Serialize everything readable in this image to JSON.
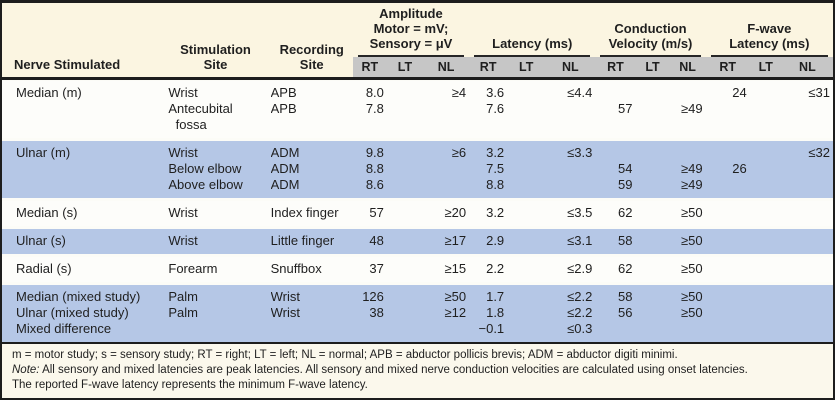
{
  "table": {
    "headers": {
      "nerve": "Nerve Stimulated",
      "site_lines": [
        "Stimulation",
        "Site"
      ],
      "rec_lines": [
        "Recording",
        "Site"
      ],
      "groups": [
        {
          "lines": [
            "Amplitude",
            "Motor = mV;",
            "Sensory = μV"
          ]
        },
        {
          "lines": [
            "Latency (ms)"
          ]
        },
        {
          "lines": [
            "Conduction",
            "Velocity (m/s)"
          ]
        },
        {
          "lines": [
            "F-wave",
            "Latency (ms)"
          ]
        }
      ],
      "sub": [
        "RT",
        "LT",
        "NL"
      ]
    },
    "rows": [
      {
        "shade": "white",
        "nerve": [
          "Median (m)"
        ],
        "site": [
          "Wrist",
          "Antecubital",
          "  fossa"
        ],
        "rec": [
          "APB",
          "APB"
        ],
        "amp_rt": [
          "8.0",
          "7.8"
        ],
        "amp_lt": [],
        "amp_nl": [
          "≥4"
        ],
        "lat_rt": [
          "3.6",
          "7.6"
        ],
        "lat_lt": [],
        "lat_nl": [
          "≤4.4"
        ],
        "cv_rt": [
          "",
          "57"
        ],
        "cv_lt": [],
        "cv_nl": [
          "",
          "≥49"
        ],
        "fw_rt": [
          "24"
        ],
        "fw_lt": [],
        "fw_nl": [
          "≤31"
        ]
      },
      {
        "shade": "blue",
        "nerve": [
          "Ulnar (m)"
        ],
        "site": [
          "Wrist",
          "Below elbow",
          "Above elbow"
        ],
        "rec": [
          "ADM",
          "ADM",
          "ADM"
        ],
        "amp_rt": [
          "9.8",
          "8.8",
          "8.6"
        ],
        "amp_lt": [],
        "amp_nl": [
          "≥6"
        ],
        "lat_rt": [
          "3.2",
          "7.5",
          "8.8"
        ],
        "lat_lt": [],
        "lat_nl": [
          "≤3.3"
        ],
        "cv_rt": [
          "",
          "54",
          "59"
        ],
        "cv_lt": [],
        "cv_nl": [
          "",
          "≥49",
          "≥49"
        ],
        "fw_rt": [
          "",
          "26"
        ],
        "fw_lt": [],
        "fw_nl": [
          "≤32"
        ]
      },
      {
        "shade": "white",
        "nerve": [
          "Median (s)"
        ],
        "site": [
          "Wrist"
        ],
        "rec": [
          "Index finger"
        ],
        "amp_rt": [
          "57"
        ],
        "amp_lt": [],
        "amp_nl": [
          "≥20"
        ],
        "lat_rt": [
          "3.2"
        ],
        "lat_lt": [],
        "lat_nl": [
          "≤3.5"
        ],
        "cv_rt": [
          "62"
        ],
        "cv_lt": [],
        "cv_nl": [
          "≥50"
        ],
        "fw_rt": [],
        "fw_lt": [],
        "fw_nl": []
      },
      {
        "shade": "blue",
        "nerve": [
          "Ulnar (s)"
        ],
        "site": [
          "Wrist"
        ],
        "rec": [
          "Little finger"
        ],
        "amp_rt": [
          "48"
        ],
        "amp_lt": [],
        "amp_nl": [
          "≥17"
        ],
        "lat_rt": [
          "2.9"
        ],
        "lat_lt": [],
        "lat_nl": [
          "≤3.1"
        ],
        "cv_rt": [
          "58"
        ],
        "cv_lt": [],
        "cv_nl": [
          "≥50"
        ],
        "fw_rt": [],
        "fw_lt": [],
        "fw_nl": []
      },
      {
        "shade": "white",
        "nerve": [
          "Radial (s)"
        ],
        "site": [
          "Forearm"
        ],
        "rec": [
          "Snuffbox"
        ],
        "amp_rt": [
          "37"
        ],
        "amp_lt": [],
        "amp_nl": [
          "≥15"
        ],
        "lat_rt": [
          "2.2"
        ],
        "lat_lt": [],
        "lat_nl": [
          "≤2.9"
        ],
        "cv_rt": [
          "62"
        ],
        "cv_lt": [],
        "cv_nl": [
          "≥50"
        ],
        "fw_rt": [],
        "fw_lt": [],
        "fw_nl": []
      },
      {
        "shade": "blue",
        "nerve": [
          "Median (mixed study)",
          "Ulnar (mixed study)",
          "Mixed difference"
        ],
        "site": [
          "Palm",
          "Palm"
        ],
        "rec": [
          "Wrist",
          "Wrist"
        ],
        "amp_rt": [
          "126",
          "38"
        ],
        "amp_lt": [],
        "amp_nl": [
          "≥50",
          "≥12"
        ],
        "lat_rt": [
          "1.7",
          "1.8",
          "−0.1"
        ],
        "lat_lt": [],
        "lat_nl": [
          "≤2.2",
          "≤2.2",
          "≤0.3"
        ],
        "cv_rt": [
          "58",
          "56"
        ],
        "cv_lt": [],
        "cv_nl": [
          "≥50",
          "≥50"
        ],
        "fw_rt": [],
        "fw_lt": [],
        "fw_nl": []
      }
    ]
  },
  "footnotes": {
    "abbreviations": "m = motor study; s = sensory study; RT = right; LT = left; NL = normal; APB = abductor pollicis brevis; ADM = abductor digiti minimi.",
    "note_label": "Note:",
    "note_text": "All sensory and mixed latencies are peak latencies. All sensory and mixed nerve conduction velocities are calculated using onset latencies.",
    "fwave_note": "The reported F-wave latency represents the minimum F-wave latency."
  },
  "colors": {
    "header_cream": "#fbf5e1",
    "subheader_gray": "#c6c6c6",
    "stripe_blue": "#b5c7e6",
    "stripe_white": "#fdfdfa",
    "footnote_bg": "#fbf8ec",
    "rule_dark": "#1d1d1d",
    "text": "#1f1f1f"
  }
}
